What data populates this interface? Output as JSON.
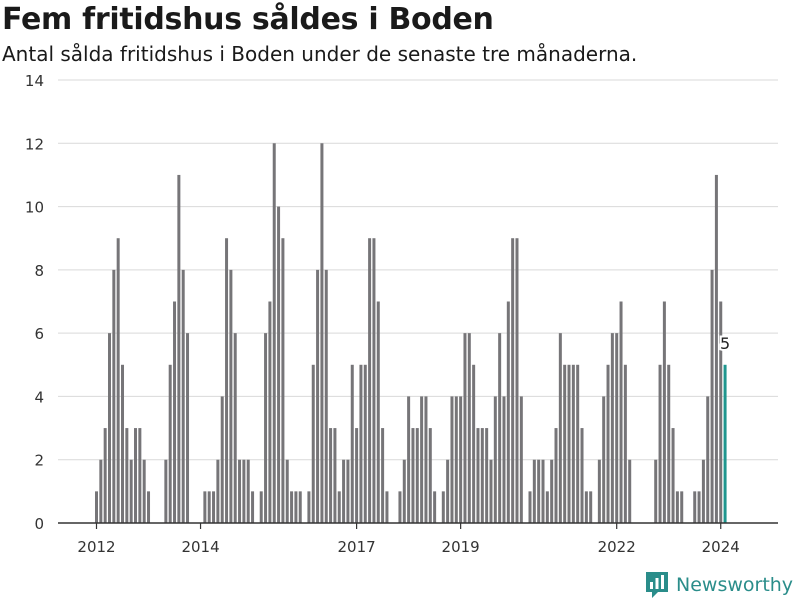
{
  "title": "Fem fritidshus såldes i Boden",
  "subtitle": "Antal sålda fritidshus i Boden under de senaste tre månaderna.",
  "brand": {
    "name": "Newsworthy",
    "icon": "newsworthy-logo-icon",
    "color": "#2a8d8a"
  },
  "colors": {
    "bar": "#767578",
    "highlight": "#1f968e",
    "grid": "#d9d9d9",
    "axis": "#333333"
  },
  "chart_data": {
    "type": "bar",
    "x_unit": "month",
    "x_start": "2012-01",
    "ylim": [
      0,
      14
    ],
    "yticks": [
      0,
      2,
      4,
      6,
      8,
      10,
      12,
      14
    ],
    "xtick_labels": [
      {
        "label": "2012",
        "year": 2012
      },
      {
        "label": "2014",
        "year": 2014
      },
      {
        "label": "2017",
        "year": 2017
      },
      {
        "label": "2019",
        "year": 2019
      },
      {
        "label": "2022",
        "year": 2022
      },
      {
        "label": "2024",
        "year": 2024
      }
    ],
    "values": [
      1,
      2,
      3,
      6,
      8,
      9,
      5,
      3,
      2,
      3,
      3,
      2,
      1,
      0,
      0,
      0,
      2,
      5,
      7,
      11,
      8,
      6,
      0,
      0,
      0,
      1,
      1,
      1,
      2,
      4,
      9,
      8,
      6,
      2,
      2,
      2,
      1,
      0,
      1,
      6,
      7,
      12,
      10,
      9,
      2,
      1,
      1,
      1,
      0,
      1,
      5,
      8,
      12,
      8,
      3,
      3,
      1,
      2,
      2,
      5,
      3,
      5,
      5,
      9,
      9,
      7,
      3,
      1,
      0,
      0,
      1,
      2,
      4,
      3,
      3,
      4,
      4,
      3,
      1,
      0,
      1,
      2,
      4,
      4,
      4,
      6,
      6,
      5,
      3,
      3,
      3,
      2,
      4,
      6,
      4,
      7,
      9,
      9,
      4,
      0,
      1,
      2,
      2,
      2,
      1,
      2,
      3,
      6,
      5,
      5,
      5,
      5,
      3,
      1,
      1,
      0,
      2,
      4,
      5,
      6,
      6,
      7,
      5,
      2,
      0,
      0,
      0,
      0,
      0,
      2,
      5,
      7,
      5,
      3,
      1,
      1,
      0,
      0,
      1,
      1,
      2,
      4,
      8,
      11,
      7,
      5
    ],
    "highlight_last": true,
    "last_value_label": "5",
    "grid": true,
    "legend": "none"
  }
}
